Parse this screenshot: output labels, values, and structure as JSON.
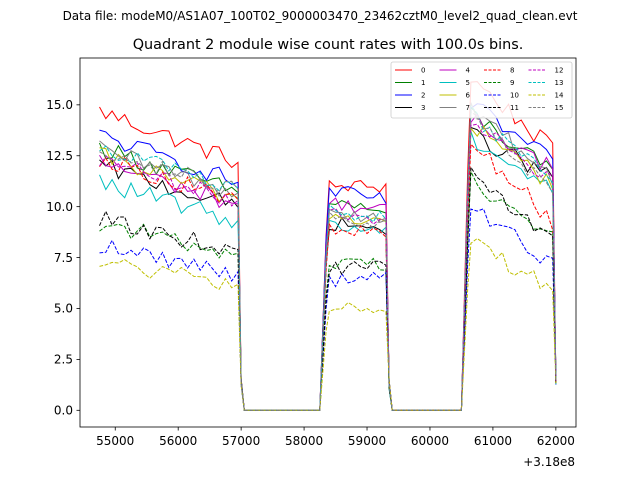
{
  "suptitle": "Data file: modeM0/AS1A07_100T02_9000003470_23462cztM0_level2_quad_clean.evt",
  "chart_data": {
    "type": "line",
    "title": "Quadrant 2 module wise count rates with 100.0s bins.",
    "xlabel": "",
    "ylabel": "",
    "x_offset_label": "+3.18e8",
    "xlim": [
      54440,
      62320
    ],
    "ylim": [
      -0.82,
      17.3
    ],
    "xticks": [
      55000,
      56000,
      57000,
      58000,
      59000,
      60000,
      61000,
      62000
    ],
    "xtick_labels": [
      "55000",
      "56000",
      "57000",
      "58000",
      "59000",
      "60000",
      "61000",
      "62000"
    ],
    "yticks": [
      0.0,
      2.5,
      5.0,
      7.5,
      10.0,
      12.5,
      15.0
    ],
    "ytick_labels": [
      "0.0",
      "2.5",
      "5.0",
      "7.5",
      "10.0",
      "12.5",
      "15.0"
    ],
    "segments": [
      [
        54750,
        56950
      ],
      [
        58400,
        59300
      ],
      [
        60650,
        61950
      ]
    ],
    "gaps": [
      [
        57050,
        58300
      ],
      [
        59400,
        60550
      ]
    ],
    "segment_edge_x": [
      57000,
      58350,
      59350,
      60600,
      62000
    ],
    "series": [
      {
        "name": "0",
        "color": "#ff0000",
        "dash": "solid",
        "levels": [
          14.7,
          11.0,
          11.0,
          16.3,
          12.8
        ]
      },
      {
        "name": "1",
        "color": "#008000",
        "dash": "solid",
        "levels": [
          12.9,
          10.3,
          9.7,
          14.6,
          11.6
        ]
      },
      {
        "name": "2",
        "color": "#0000ff",
        "dash": "solid",
        "levels": [
          13.5,
          10.8,
          10.3,
          15.0,
          12.2
        ]
      },
      {
        "name": "3",
        "color": "#000000",
        "dash": "solid",
        "levels": [
          12.0,
          9.2,
          8.9,
          13.6,
          11.4
        ]
      },
      {
        "name": "4",
        "color": "#bf00bf",
        "dash": "solid",
        "levels": [
          12.2,
          10.2,
          9.8,
          14.3,
          11.9
        ]
      },
      {
        "name": "5",
        "color": "#00bfbf",
        "dash": "solid",
        "levels": [
          11.2,
          9.1,
          8.8,
          13.4,
          10.8
        ]
      },
      {
        "name": "6",
        "color": "#bfbf00",
        "dash": "solid",
        "levels": [
          12.5,
          9.6,
          9.2,
          14.0,
          11.1
        ]
      },
      {
        "name": "7",
        "color": "#808080",
        "dash": "solid",
        "levels": [
          12.8,
          9.8,
          9.4,
          14.8,
          11.4
        ]
      },
      {
        "name": "8",
        "color": "#ff0000",
        "dash": "dashed",
        "levels": [
          12.4,
          8.8,
          8.7,
          13.2,
          9.3
        ]
      },
      {
        "name": "9",
        "color": "#008000",
        "dash": "dashed",
        "levels": [
          9.2,
          7.2,
          7.2,
          11.4,
          8.4
        ]
      },
      {
        "name": "10",
        "color": "#0000ff",
        "dash": "dashed",
        "levels": [
          8.1,
          6.4,
          6.5,
          10.0,
          7.2
        ]
      },
      {
        "name": "11",
        "color": "#000000",
        "dash": "dashed",
        "levels": [
          9.4,
          7.0,
          7.0,
          11.6,
          8.4
        ]
      },
      {
        "name": "12",
        "color": "#bf00bf",
        "dash": "dashed",
        "levels": [
          12.3,
          9.8,
          9.4,
          14.1,
          11.4
        ]
      },
      {
        "name": "13",
        "color": "#00bfbf",
        "dash": "dashed",
        "levels": [
          13.0,
          9.8,
          9.5,
          14.6,
          11.2
        ]
      },
      {
        "name": "14",
        "color": "#bfbf00",
        "dash": "dashed",
        "levels": [
          7.3,
          5.0,
          5.1,
          8.3,
          6.0
        ]
      },
      {
        "name": "15",
        "color": "#808080",
        "dash": "dashed",
        "levels": [
          12.9,
          9.6,
          9.1,
          14.3,
          10.9
        ]
      }
    ],
    "legend_position": "top-right"
  }
}
